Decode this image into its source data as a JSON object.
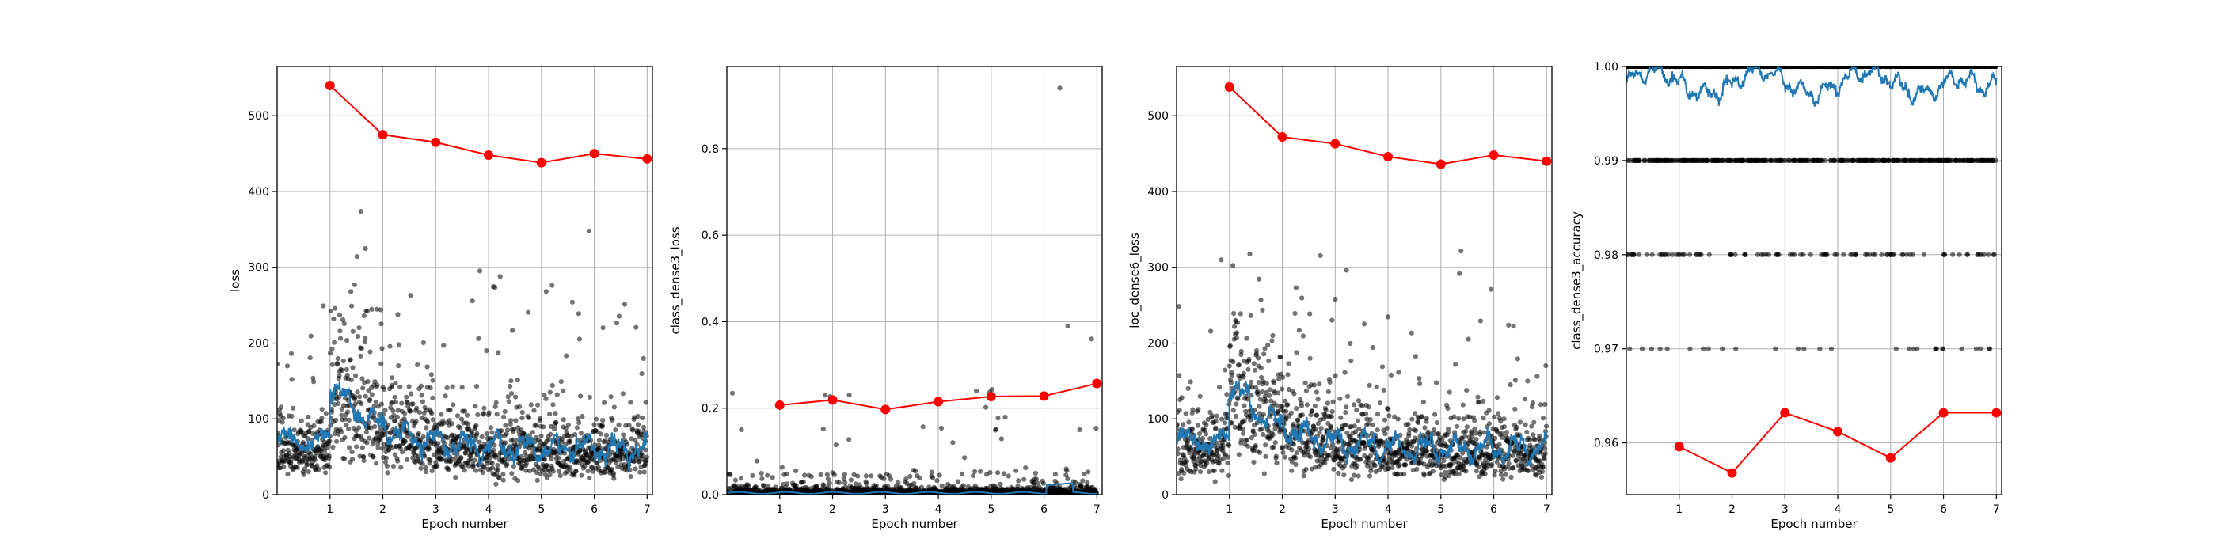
{
  "figure": {
    "colors": {
      "epoch_line": "#ff0000",
      "batch_points": "#000000",
      "smoothed": "#1f77b4",
      "grid": "#b0b0b0",
      "frame": "#000000"
    }
  },
  "chart_data": [
    {
      "type": "line",
      "xlabel": "Epoch number",
      "ylabel": "loss",
      "xlim": [
        0,
        7.1
      ],
      "ylim": [
        0,
        565
      ],
      "xticks": [
        "1",
        "2",
        "3",
        "4",
        "5",
        "6",
        "7"
      ],
      "yticks": [
        "0",
        "100",
        "200",
        "300",
        "400",
        "500"
      ],
      "ytick_values": [
        0,
        100,
        200,
        300,
        400,
        500
      ],
      "grid": true,
      "series": [
        {
          "role": "epoch",
          "x": [
            1,
            2,
            3,
            4,
            5,
            6,
            7
          ],
          "y": [
            540,
            475,
            465,
            448,
            438,
            450,
            443
          ]
        },
        {
          "role": "batches_scatter",
          "profile": "loss",
          "batch_jump_at": 1
        },
        {
          "role": "smoothed_line",
          "profile": "loss"
        }
      ]
    },
    {
      "type": "line",
      "xlabel": "Epoch number",
      "ylabel": "class_dense3_loss",
      "xlim": [
        0,
        7.1
      ],
      "ylim": [
        0,
        0.99
      ],
      "xticks": [
        "1",
        "2",
        "3",
        "4",
        "5",
        "6",
        "7"
      ],
      "yticks": [
        "0.0",
        "0.2",
        "0.4",
        "0.6",
        "0.8"
      ],
      "ytick_values": [
        0,
        0.2,
        0.4,
        0.6,
        0.8
      ],
      "grid": true,
      "series": [
        {
          "role": "epoch",
          "x": [
            1,
            2,
            3,
            4,
            5,
            6,
            7
          ],
          "y": [
            0.207,
            0.219,
            0.197,
            0.215,
            0.227,
            0.228,
            0.257
          ]
        },
        {
          "role": "batches_scatter",
          "profile": "class_loss",
          "outliers": [
            [
              6.3,
              0.94
            ],
            [
              6.45,
              0.39
            ],
            [
              6.9,
              0.36
            ]
          ]
        },
        {
          "role": "smoothed_line",
          "profile": "class_loss"
        }
      ]
    },
    {
      "type": "line",
      "xlabel": "Epoch number",
      "ylabel": "loc_dense6_loss",
      "xlim": [
        0,
        7.1
      ],
      "ylim": [
        0,
        565
      ],
      "xticks": [
        "1",
        "2",
        "3",
        "4",
        "5",
        "6",
        "7"
      ],
      "yticks": [
        "0",
        "100",
        "200",
        "300",
        "400",
        "500"
      ],
      "ytick_values": [
        0,
        100,
        200,
        300,
        400,
        500
      ],
      "grid": true,
      "series": [
        {
          "role": "epoch",
          "x": [
            1,
            2,
            3,
            4,
            5,
            6,
            7
          ],
          "y": [
            538,
            472,
            463,
            446,
            436,
            448,
            440
          ]
        },
        {
          "role": "batches_scatter",
          "profile": "loss",
          "batch_jump_at": 1
        },
        {
          "role": "smoothed_line",
          "profile": "loss"
        }
      ]
    },
    {
      "type": "line",
      "xlabel": "Epoch number",
      "ylabel": "class_dense3_accuracy",
      "xlim": [
        0,
        7.1
      ],
      "ylim": [
        0.9545,
        1.0
      ],
      "xticks": [
        "1",
        "2",
        "3",
        "4",
        "5",
        "6",
        "7"
      ],
      "yticks": [
        "0.96",
        "0.97",
        "0.98",
        "0.99",
        "1.00"
      ],
      "ytick_values": [
        0.96,
        0.97,
        0.98,
        0.99,
        1.0
      ],
      "grid": true,
      "series": [
        {
          "role": "epoch",
          "x": [
            1,
            2,
            3,
            4,
            5,
            6,
            7
          ],
          "y": [
            0.9596,
            0.9568,
            0.9632,
            0.9612,
            0.9584,
            0.9632,
            0.9632
          ]
        },
        {
          "role": "batches_scatter",
          "profile": "accuracy",
          "levels": [
            1.0,
            0.99,
            0.98,
            0.97
          ]
        },
        {
          "role": "smoothed_line",
          "profile": "accuracy"
        }
      ]
    }
  ]
}
